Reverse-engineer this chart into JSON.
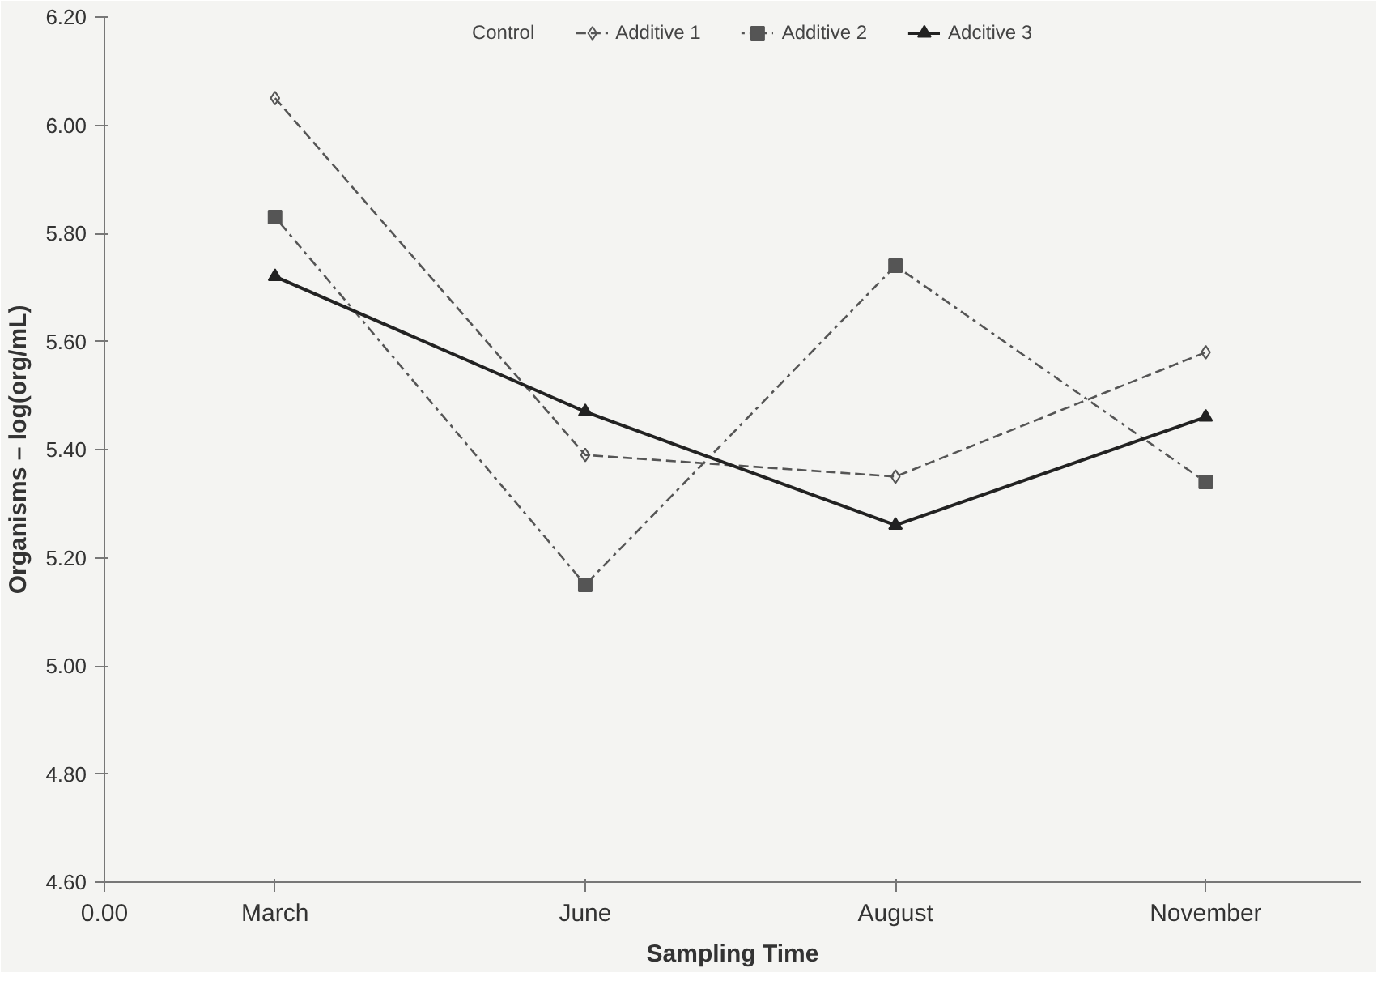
{
  "chart_data": {
    "type": "line",
    "xlabel": "Sampling Time",
    "ylabel": "Organisms – log(org/mL)",
    "categories": [
      "March",
      "June",
      "August",
      "November"
    ],
    "series": [
      {
        "name": "Control",
        "values": [
          null,
          null,
          null,
          null
        ]
      },
      {
        "name": "Additive 1",
        "color": "#555555",
        "marker": "diamond",
        "line_style": "dashed",
        "values": [
          6.05,
          5.39,
          5.35,
          5.58
        ]
      },
      {
        "name": "Additive 2",
        "color": "#555555",
        "marker": "square",
        "line_style": "dotted",
        "values": [
          5.83,
          5.15,
          5.74,
          5.34
        ]
      },
      {
        "name": "Adcitive 3",
        "color": "#222222",
        "marker": "triangle",
        "line_style": "solid",
        "values": [
          5.72,
          5.47,
          5.26,
          5.46
        ]
      }
    ],
    "ylim": [
      4.6,
      6.2
    ],
    "yticks": [
      {
        "value": 4.6,
        "label": "4.60"
      },
      {
        "value": 4.8,
        "label": "4.80"
      },
      {
        "value": 5.0,
        "label": "5.00"
      },
      {
        "value": 5.2,
        "label": "5.20"
      },
      {
        "value": 5.4,
        "label": "5.40"
      },
      {
        "value": 5.6,
        "label": "5.60"
      },
      {
        "value": 5.8,
        "label": "5.80"
      },
      {
        "value": 6.0,
        "label": "6.00"
      },
      {
        "value": 6.2,
        "label": "6.20"
      }
    ],
    "annotations": [
      "0.00"
    ],
    "grid": false,
    "legend": "top"
  }
}
